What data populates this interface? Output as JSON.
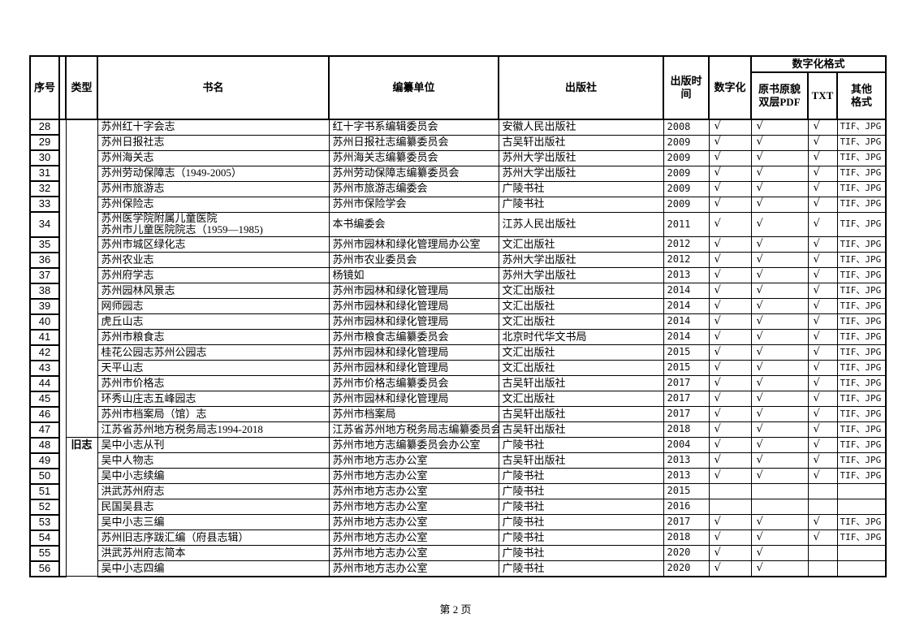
{
  "page": {
    "footer": "第 2 页"
  },
  "table": {
    "headers": {
      "no": "序号",
      "type": "类型",
      "title": "书名",
      "compiler": "编纂单位",
      "publisher": "出版社",
      "pub_year": "出版时间",
      "digitized": "数字化",
      "format_group": "数字化格式",
      "pdf": "原书原貌\n双层PDF",
      "txt": "TXT",
      "other": "其他\n格式"
    },
    "check_mark": "√",
    "rows": [
      {
        "no": "28",
        "type": "",
        "type_span": 20,
        "title": "苏州红十字会志",
        "compiler": "红十字书系编辑委员会",
        "publisher": "安徽人民出版社",
        "year": "2008",
        "digitized": "√",
        "pdf": "√",
        "txt": "√",
        "other": "TIF、JPG"
      },
      {
        "no": "29",
        "title": "苏州日报社志",
        "compiler": "苏州日报社志编纂委员会",
        "publisher": "古吴轩出版社",
        "year": "2009",
        "digitized": "√",
        "pdf": "√",
        "txt": "√",
        "other": "TIF、JPG"
      },
      {
        "no": "30",
        "title": "苏州海关志",
        "compiler": "苏州海关志编纂委员会",
        "publisher": "苏州大学出版社",
        "year": "2009",
        "digitized": "√",
        "pdf": "√",
        "txt": "√",
        "other": "TIF、JPG"
      },
      {
        "no": "31",
        "title": "苏州劳动保障志（1949-2005）",
        "compiler": "苏州劳动保障志编纂委员会",
        "publisher": "苏州大学出版社",
        "year": "2009",
        "digitized": "√",
        "pdf": "√",
        "txt": "√",
        "other": "TIF、JPG"
      },
      {
        "no": "32",
        "title": "苏州市旅游志",
        "compiler": "苏州市旅游志编委会",
        "publisher": "广陵书社",
        "year": "2009",
        "digitized": "√",
        "pdf": "√",
        "txt": "√",
        "other": "TIF、JPG"
      },
      {
        "no": "33",
        "title": "苏州保险志",
        "compiler": "苏州市保险学会",
        "publisher": "广陵书社",
        "year": "2009",
        "digitized": "√",
        "pdf": "√",
        "txt": "√",
        "other": "TIF、JPG"
      },
      {
        "no": "34",
        "title": "苏州医学院附属儿童医院\n苏州市儿童医院院志（1959—1985)",
        "compiler": "本书编委会",
        "publisher": "江苏人民出版社",
        "year": "2011",
        "digitized": "√",
        "pdf": "√",
        "txt": "√",
        "other": "TIF、JPG"
      },
      {
        "no": "35",
        "title": "苏州市城区绿化志",
        "compiler": "苏州市园林和绿化管理局办公室",
        "publisher": "文汇出版社",
        "year": "2012",
        "digitized": "√",
        "pdf": "√",
        "txt": "√",
        "other": "TIF、JPG"
      },
      {
        "no": "36",
        "title": "苏州农业志",
        "compiler": "苏州市农业委员会",
        "publisher": "苏州大学出版社",
        "year": "2012",
        "digitized": "√",
        "pdf": "√",
        "txt": "√",
        "other": "TIF、JPG"
      },
      {
        "no": "37",
        "title": "苏州府学志",
        "compiler": "杨镜如",
        "publisher": "苏州大学出版社",
        "year": "2013",
        "digitized": "√",
        "pdf": "√",
        "txt": "√",
        "other": "TIF、JPG"
      },
      {
        "no": "38",
        "title": "苏州园林风景志",
        "compiler": "苏州市园林和绿化管理局",
        "publisher": "文汇出版社",
        "year": "2014",
        "digitized": "√",
        "pdf": "√",
        "txt": "√",
        "other": "TIF、JPG"
      },
      {
        "no": "39",
        "title": "网师园志",
        "compiler": "苏州市园林和绿化管理局",
        "publisher": "文汇出版社",
        "year": "2014",
        "digitized": "√",
        "pdf": "√",
        "txt": "√",
        "other": "TIF、JPG"
      },
      {
        "no": "40",
        "title": "虎丘山志",
        "compiler": "苏州市园林和绿化管理局",
        "publisher": "文汇出版社",
        "year": "2014",
        "digitized": "√",
        "pdf": "√",
        "txt": "√",
        "other": "TIF、JPG"
      },
      {
        "no": "41",
        "title": "苏州市粮食志",
        "compiler": "苏州市粮食志编纂委员会",
        "publisher": "北京时代华文书局",
        "year": "2014",
        "digitized": "√",
        "pdf": "√",
        "txt": "√",
        "other": "TIF、JPG"
      },
      {
        "no": "42",
        "title": "桂花公园志苏州公园志",
        "compiler": "苏州市园林和绿化管理局",
        "publisher": "文汇出版社",
        "year": "2015",
        "digitized": "√",
        "pdf": "√",
        "txt": "√",
        "other": "TIF、JPG"
      },
      {
        "no": "43",
        "title": "天平山志",
        "compiler": "苏州市园林和绿化管理局",
        "publisher": "文汇出版社",
        "year": "2015",
        "digitized": "√",
        "pdf": "√",
        "txt": "√",
        "other": "TIF、JPG"
      },
      {
        "no": "44",
        "title": "苏州市价格志",
        "compiler": "苏州市价格志编纂委员会",
        "publisher": "古吴轩出版社",
        "year": "2017",
        "digitized": "√",
        "pdf": "√",
        "txt": "√",
        "other": "TIF、JPG"
      },
      {
        "no": "45",
        "title": "环秀山庄志五峰园志",
        "compiler": "苏州市园林和绿化管理局",
        "publisher": "文汇出版社",
        "year": "2017",
        "digitized": "√",
        "pdf": "√",
        "txt": "√",
        "other": "TIF、JPG"
      },
      {
        "no": "46",
        "title": "苏州市档案局（馆）志",
        "compiler": "苏州市档案局",
        "publisher": "古吴轩出版社",
        "year": "2017",
        "digitized": "√",
        "pdf": "√",
        "txt": "√",
        "other": "TIF、JPG"
      },
      {
        "no": "47",
        "title": "江苏省苏州地方税务局志1994-2018",
        "compiler": "江苏省苏州地方税务局志编纂委员会",
        "publisher": "古吴轩出版社",
        "year": "2018",
        "digitized": "√",
        "pdf": "√",
        "txt": "√",
        "other": "TIF、JPG"
      },
      {
        "no": "48",
        "type": "旧志",
        "type_span": 9,
        "title": "吴中小志从刊",
        "compiler": "苏州市地方志编纂委员会办公室",
        "publisher": "广陵书社",
        "year": "2004",
        "digitized": "√",
        "pdf": "√",
        "txt": "√",
        "other": "TIF、JPG"
      },
      {
        "no": "49",
        "title": "吴中人物志",
        "compiler": "苏州市地方志办公室",
        "publisher": "古吴轩出版社",
        "year": "2013",
        "digitized": "√",
        "pdf": "√",
        "txt": "√",
        "other": "TIF、JPG"
      },
      {
        "no": "50",
        "title": "吴中小志续编",
        "compiler": "苏州市地方志办公室",
        "publisher": "广陵书社",
        "year": "2013",
        "digitized": "√",
        "pdf": "√",
        "txt": "√",
        "other": "TIF、JPG"
      },
      {
        "no": "51",
        "title": "洪武苏州府志",
        "compiler": "苏州市地方志办公室",
        "publisher": "广陵书社",
        "year": "2015",
        "digitized": "",
        "pdf": "",
        "txt": "",
        "other": ""
      },
      {
        "no": "52",
        "title": "民国吴县志",
        "compiler": "苏州市地方志办公室",
        "publisher": "广陵书社",
        "year": "2016",
        "digitized": "",
        "pdf": "",
        "txt": "",
        "other": ""
      },
      {
        "no": "53",
        "title": "吴中小志三编",
        "compiler": "苏州市地方志办公室",
        "publisher": "广陵书社",
        "year": "2017",
        "digitized": "√",
        "pdf": "√",
        "txt": "√",
        "other": "TIF、JPG"
      },
      {
        "no": "54",
        "title": "苏州旧志序跋汇编（府县志辑）",
        "compiler": "苏州市地方志办公室",
        "publisher": "广陵书社",
        "year": "2018",
        "digitized": "√",
        "pdf": "√",
        "txt": "√",
        "other": "TIF、JPG"
      },
      {
        "no": "55",
        "title": "洪武苏州府志简本",
        "compiler": "苏州市地方志办公室",
        "publisher": "广陵书社",
        "year": "2020",
        "digitized": "√",
        "pdf": "√",
        "txt": "",
        "other": ""
      },
      {
        "no": "56",
        "title": "吴中小志四编",
        "compiler": "苏州市地方志办公室",
        "publisher": "广陵书社",
        "year": "2020",
        "digitized": "√",
        "pdf": "√",
        "txt": "",
        "other": ""
      }
    ]
  }
}
